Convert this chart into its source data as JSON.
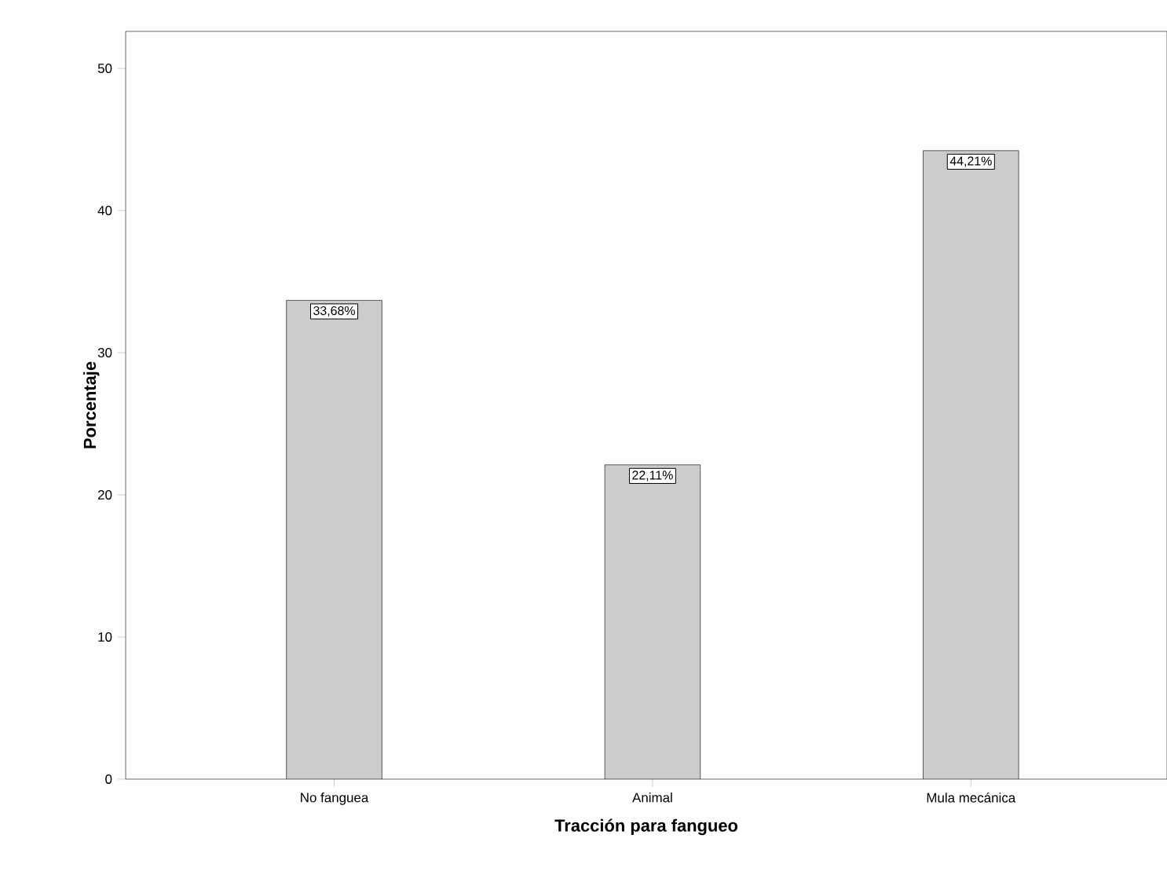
{
  "chart_data": {
    "type": "bar",
    "xlabel": "Tracción para fangueo",
    "ylabel": "Porcentaje",
    "categories": [
      "No fanguea",
      "Animal",
      "Mula mecánica"
    ],
    "values": [
      33.68,
      22.11,
      44.21
    ],
    "value_labels": [
      "33,68%",
      "22,11%",
      "44,21%"
    ],
    "color": "#cccccc",
    "ylim": [
      0,
      52.6
    ],
    "yticks": [
      0,
      10,
      20,
      30,
      40,
      50
    ],
    "grid": false
  }
}
